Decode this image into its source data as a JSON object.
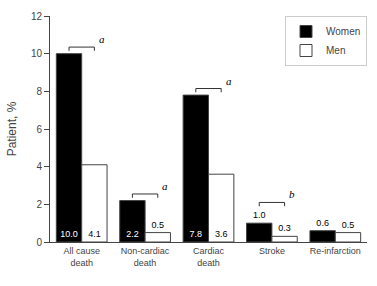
{
  "chart_data": {
    "type": "bar",
    "categories": [
      "All cause\ndeath",
      "Non-cardiac\ndeath",
      "Cardiac\ndeath",
      "Stroke",
      "Re-infarction"
    ],
    "series": [
      {
        "name": "Women",
        "color": "#000000",
        "values": [
          10.0,
          2.2,
          7.8,
          1.0,
          0.6
        ],
        "value_labels": [
          "10.0",
          "2.2",
          "7.8",
          "1.0",
          "0.6"
        ]
      },
      {
        "name": "Men",
        "color": "#ffffff",
        "values": [
          4.1,
          0.5,
          3.6,
          0.3,
          0.5
        ],
        "value_labels": [
          "4.1",
          "0.5",
          "3.6",
          "0.3",
          "0.5"
        ]
      }
    ],
    "ylabel": "Patient, %",
    "ylim": [
      0,
      12
    ],
    "yticks": [
      0,
      2,
      4,
      6,
      8,
      10,
      12
    ],
    "legend": "upper right",
    "grid": false,
    "data_labels": true,
    "annotations": [
      {
        "category": "All cause\ndeath",
        "text": "a"
      },
      {
        "category": "Non-cardiac\ndeath",
        "text": "a"
      },
      {
        "category": "Cardiac\ndeath",
        "text": "a"
      },
      {
        "category": "Stroke",
        "text": "b"
      }
    ]
  }
}
